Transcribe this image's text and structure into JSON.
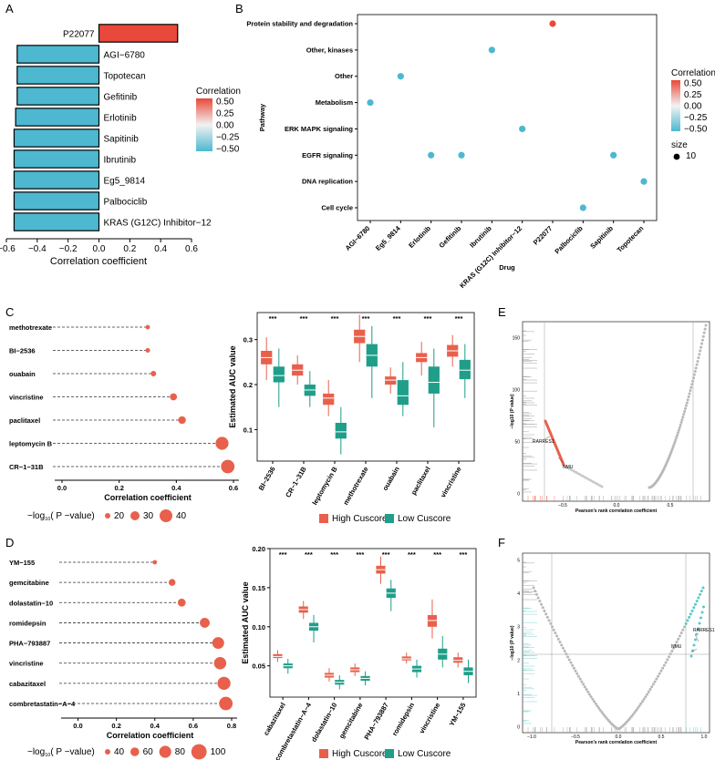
{
  "panels": {
    "A": "A",
    "B": "B",
    "C": "C",
    "D": "D",
    "E": "E",
    "F": "F"
  },
  "chart_data": [
    {
      "id": "A",
      "type": "bar",
      "orientation": "horizontal",
      "categories": [
        "P22077",
        "AGI−6780",
        "Topotecan",
        "Gefitinib",
        "Erlotinib",
        "Sapitinib",
        "Ibrutinib",
        "Eg5_9814",
        "Palbociclib",
        "KRAS (G12C) Inhibitor−12"
      ],
      "values": [
        0.51,
        -0.53,
        -0.53,
        -0.53,
        -0.54,
        -0.55,
        -0.55,
        -0.55,
        -0.55,
        -0.55
      ],
      "colors": [
        "#E8493B",
        "#4DB8D0",
        "#4DB8D0",
        "#4DB8D0",
        "#4DB8D0",
        "#4DB8D0",
        "#4DB8D0",
        "#4DB8D0",
        "#4DB8D0",
        "#4DB8D0"
      ],
      "xlabel": "Correlation coefficient",
      "xlim": [
        -0.6,
        0.6
      ],
      "xticks": [
        "−0.6",
        "−0.4",
        "−0.2",
        "0.0",
        "0.2",
        "0.4",
        "0.6"
      ],
      "legend": {
        "title": "Correlation",
        "labels": [
          "0.50",
          "0.25",
          "0.00",
          "−0.25",
          "−0.50"
        ]
      }
    },
    {
      "id": "B",
      "type": "scatter",
      "xlabel": "Drug",
      "ylabel": "Pathway",
      "x_categories": [
        "AGI−6780",
        "Eg5_9814",
        "Erlotinib",
        "Gefitinib",
        "Ibrutinib",
        "KRAS (G12C) Inhibitor−12",
        "P22077",
        "Palbociclib",
        "Sapitinib",
        "Topotecan"
      ],
      "y_categories": [
        "Protein stability and degradation",
        "Other, kinases",
        "Other",
        "Metabolism",
        "ERK MAPK signaling",
        "EGFR signaling",
        "DNA replication",
        "Cell cycle"
      ],
      "points": [
        {
          "drug": "P22077",
          "pathway": "Protein stability and degradation",
          "r": 0.51
        },
        {
          "drug": "Ibrutinib",
          "pathway": "Other, kinases",
          "r": -0.55
        },
        {
          "drug": "Eg5_9814",
          "pathway": "Other",
          "r": -0.55
        },
        {
          "drug": "AGI−6780",
          "pathway": "Metabolism",
          "r": -0.53
        },
        {
          "drug": "KRAS (G12C) Inhibitor−12",
          "pathway": "ERK MAPK signaling",
          "r": -0.55
        },
        {
          "drug": "Erlotinib",
          "pathway": "EGFR signaling",
          "r": -0.54
        },
        {
          "drug": "Gefitinib",
          "pathway": "EGFR signaling",
          "r": -0.53
        },
        {
          "drug": "Sapitinib",
          "pathway": "EGFR signaling",
          "r": -0.55
        },
        {
          "drug": "Topotecan",
          "pathway": "DNA replication",
          "r": -0.53
        },
        {
          "drug": "Palbociclib",
          "pathway": "Cell cycle",
          "r": -0.55
        }
      ],
      "legend": {
        "title": "Correlation",
        "labels": [
          "0.50",
          "0.25",
          "0.00",
          "−0.25",
          "−0.50"
        ],
        "size_title": "size",
        "size_value": "10"
      }
    },
    {
      "id": "C-lollipop",
      "type": "scatter",
      "style": "lollipop",
      "categories": [
        "methotrexate",
        "BI−2536",
        "ouabain",
        "vincristine",
        "paclitaxel",
        "leptomycin B",
        "CR−1−31B"
      ],
      "values": [
        0.3,
        0.3,
        0.32,
        0.39,
        0.42,
        0.56,
        0.58
      ],
      "neglog10p": [
        12,
        13,
        16,
        22,
        24,
        44,
        46
      ],
      "xlabel": "Correlation coefficient",
      "xlim": [
        0,
        0.6
      ],
      "xticks": [
        "0.0",
        "0.2",
        "0.4",
        "0.6"
      ],
      "legend": {
        "title_prefix": "−log",
        "title_sub": "10",
        "title_suffix": "( P −value)",
        "labels": [
          "20",
          "30",
          "40"
        ]
      }
    },
    {
      "id": "C-box",
      "type": "box",
      "categories": [
        "BI−2536",
        "CR−1−31B",
        "leptomycin B",
        "methotrexate",
        "ouabain",
        "paclitaxel",
        "vincristine"
      ],
      "ylabel": "Estimated AUC value",
      "ylim": [
        0.03,
        0.36
      ],
      "yticks": [
        0.1,
        0.2,
        0.3
      ],
      "significance": [
        "***",
        "***",
        "***",
        "***",
        "***",
        "***",
        "***"
      ],
      "series": [
        {
          "name": "High Cuscore",
          "color": "#E8604C",
          "stats": [
            [
              0.21,
              0.245,
              0.26,
              0.275,
              0.305
            ],
            [
              0.2,
              0.22,
              0.232,
              0.245,
              0.265
            ],
            [
              0.13,
              0.155,
              0.17,
              0.18,
              0.21
            ],
            [
              0.25,
              0.292,
              0.307,
              0.322,
              0.355
            ],
            [
              0.18,
              0.2,
              0.21,
              0.218,
              0.238
            ],
            [
              0.22,
              0.25,
              0.26,
              0.27,
              0.295
            ],
            [
              0.24,
              0.262,
              0.275,
              0.288,
              0.31
            ]
          ]
        },
        {
          "name": "Low Cuscore",
          "color": "#1F9E89",
          "stats": [
            [
              0.15,
              0.205,
              0.22,
              0.24,
              0.28
            ],
            [
              0.15,
              0.175,
              0.188,
              0.2,
              0.23
            ],
            [
              0.045,
              0.08,
              0.095,
              0.115,
              0.15
            ],
            [
              0.17,
              0.24,
              0.265,
              0.29,
              0.33
            ],
            [
              0.13,
              0.155,
              0.175,
              0.21,
              0.25
            ],
            [
              0.105,
              0.18,
              0.205,
              0.24,
              0.28
            ],
            [
              0.17,
              0.212,
              0.232,
              0.255,
              0.29
            ]
          ]
        }
      ]
    },
    {
      "id": "D-lollipop",
      "type": "scatter",
      "style": "lollipop",
      "categories": [
        "YM−155",
        "gemcitabine",
        "dolastatin−10",
        "romidepsin",
        "PHA−793887",
        "vincristine",
        "cabazitaxel",
        "combretastatin−A−4"
      ],
      "values": [
        0.4,
        0.49,
        0.54,
        0.66,
        0.73,
        0.74,
        0.76,
        0.77
      ],
      "neglog10p": [
        22,
        42,
        52,
        68,
        84,
        88,
        94,
        98
      ],
      "xlabel": "Correlation coefficient",
      "xlim": [
        -0.05,
        0.8
      ],
      "xticks": [
        "0.0",
        "0.2",
        "0.4",
        "0.6",
        "0.8"
      ],
      "legend": {
        "title_prefix": "−log",
        "title_sub": "10",
        "title_suffix": "( P −value)",
        "labels": [
          "40",
          "60",
          "80",
          "100"
        ]
      }
    },
    {
      "id": "D-box",
      "type": "box",
      "categories": [
        "cabazitaxel",
        "combretastatin−A−4",
        "dolastatin−10",
        "gemcitabine",
        "PHA−793887",
        "romidepsin",
        "vincristine",
        "YM−155"
      ],
      "ylabel": "Estimated AUC value",
      "ylim": [
        0.01,
        0.2
      ],
      "yticks": [
        0.05,
        0.1,
        0.15,
        0.2
      ],
      "yticklabels": [
        "0.05",
        "0.10",
        "0.15",
        "0.20"
      ],
      "significance": [
        "***",
        "***",
        "***",
        "***",
        "***",
        "***",
        "***",
        "***"
      ],
      "series": [
        {
          "name": "High Cuscore",
          "color": "#E8604C",
          "stats": [
            [
              0.055,
              0.06,
              0.062,
              0.065,
              0.07
            ],
            [
              0.11,
              0.118,
              0.122,
              0.126,
              0.133
            ],
            [
              0.03,
              0.035,
              0.038,
              0.041,
              0.047
            ],
            [
              0.037,
              0.042,
              0.045,
              0.048,
              0.053
            ],
            [
              0.155,
              0.168,
              0.173,
              0.178,
              0.19
            ],
            [
              0.053,
              0.057,
              0.059,
              0.062,
              0.067
            ],
            [
              0.085,
              0.1,
              0.108,
              0.115,
              0.135
            ],
            [
              0.048,
              0.054,
              0.057,
              0.061,
              0.067
            ]
          ]
        },
        {
          "name": "Low Cuscore",
          "color": "#1F9E89",
          "stats": [
            [
              0.04,
              0.047,
              0.05,
              0.053,
              0.059
            ],
            [
              0.08,
              0.095,
              0.1,
              0.105,
              0.115
            ],
            [
              0.02,
              0.026,
              0.029,
              0.032,
              0.038
            ],
            [
              0.025,
              0.031,
              0.034,
              0.037,
              0.043
            ],
            [
              0.12,
              0.137,
              0.143,
              0.149,
              0.16
            ],
            [
              0.035,
              0.042,
              0.046,
              0.05,
              0.058
            ],
            [
              0.048,
              0.058,
              0.065,
              0.072,
              0.088
            ],
            [
              0.028,
              0.038,
              0.043,
              0.048,
              0.058
            ]
          ]
        }
      ]
    },
    {
      "id": "E",
      "type": "scatter",
      "xlabel": "Pearson's rank correlation coefficient",
      "ylabel": "−log10 (P value)",
      "yticks": [
        "0",
        "50",
        "100",
        "150"
      ],
      "xticks": [
        "−0.5",
        "0.0",
        "0.5"
      ],
      "annotations": [
        "RARRES1",
        "NMU"
      ]
    },
    {
      "id": "F",
      "type": "scatter",
      "xlabel": "Pearson's rank correlation coefficient",
      "ylabel": "−log10 (P value)",
      "yticks": [
        "0",
        "1",
        "2",
        "3",
        "4",
        "5"
      ],
      "xticks": [
        "−1.0",
        "−0.5",
        "0.0",
        "0.5",
        "1.0"
      ],
      "annotations": [
        "NMU",
        "RARRES1"
      ]
    }
  ]
}
